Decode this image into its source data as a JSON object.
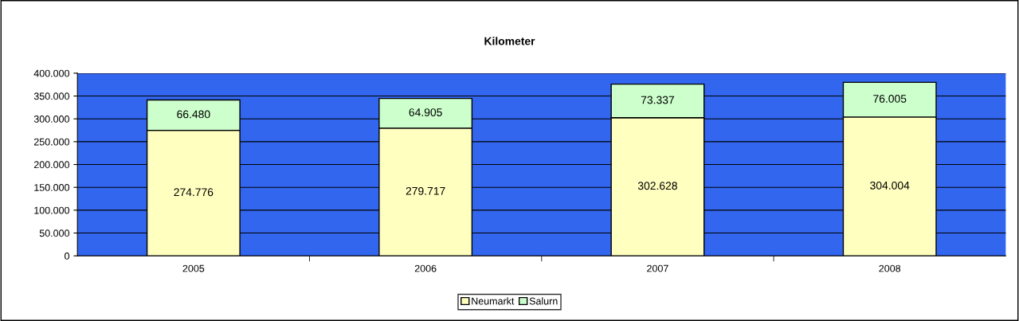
{
  "chart_data": {
    "type": "bar",
    "title": "Kilometer",
    "stacked": true,
    "categories": [
      "2005",
      "2006",
      "2007",
      "2008"
    ],
    "series": [
      {
        "name": "Neumarkt",
        "color": "#ffffc0",
        "values": [
          274776,
          279717,
          302628,
          304004
        ],
        "value_labels": [
          "274.776",
          "279.717",
          "302.628",
          "304.004"
        ]
      },
      {
        "name": "Salurn",
        "color": "#ccffcc",
        "values": [
          66480,
          64905,
          73337,
          76005
        ],
        "value_labels": [
          "66.480",
          "64.905",
          "73.337",
          "76.005"
        ]
      }
    ],
    "ylim": [
      0,
      400000
    ],
    "yticks": [
      0,
      {
        "value": 50000,
        "label": "50.000"
      },
      {
        "value": 100000,
        "label": "100.000"
      },
      {
        "value": 150000,
        "label": "150.000"
      },
      {
        "value": 200000,
        "label": "200.000"
      },
      {
        "value": 250000,
        "label": "250.000"
      },
      {
        "value": 300000,
        "label": "300.000"
      },
      {
        "value": 350000,
        "label": "350.000"
      },
      {
        "value": 400000,
        "label": "400.000"
      }
    ],
    "grid": "y",
    "legend": "bottom"
  }
}
